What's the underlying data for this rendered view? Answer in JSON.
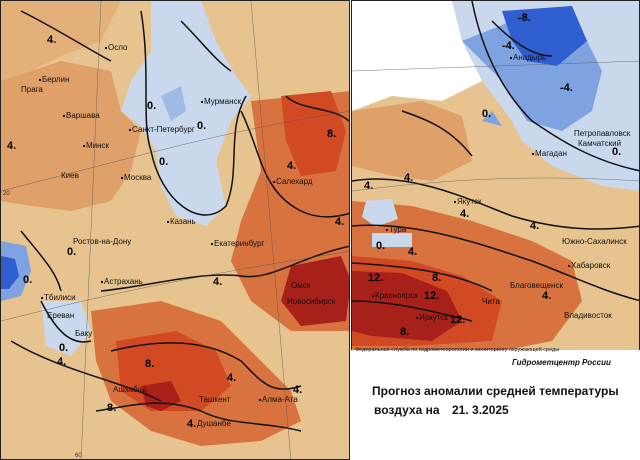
{
  "title": {
    "line1": "Прогноз аномалии средней температуры",
    "line2": "воздуха на",
    "date": "21. 3.2025"
  },
  "agency": "Федеральная служба по гидрометеорологии и мониторингу окружающей среды",
  "brand": "Гидрометцентр России",
  "colors": {
    "cold_strong": "#2e5ecf",
    "cold_mid": "#7fa2e0",
    "cold_light": "#c9d8ec",
    "neutral_warm": "#e7c48f",
    "warm_light": "#dfa06a",
    "warm_mid": "#d8733f",
    "warm_strong": "#d14a23",
    "warm_extreme": "#a8201a"
  },
  "west": {
    "cities": [
      "Осло",
      "Берлин",
      "Прага",
      "Варшава",
      "Мурманск",
      "Санкт-Петербург",
      "Минск",
      "Киев",
      "Москва",
      "Салехард",
      "Казань",
      "Екатеринбург",
      "Ростов-на-Дону",
      "Астрахань",
      "Омск",
      "Новосибирск",
      "Тбилиси",
      "Ереван",
      "Баку",
      "Ашхабад",
      "Ташкент",
      "Алма-Ата",
      "Душанбе"
    ],
    "isolines": [
      "4.",
      "4.",
      "0.",
      "0.",
      "0.",
      "0.",
      "8.",
      "4.",
      "4.",
      "4.",
      "0.",
      "0.",
      "4.",
      "8.",
      "8.",
      "4.",
      "4.",
      "4."
    ],
    "grid_labels": [
      "20",
      "60"
    ]
  },
  "east": {
    "cities": [
      "Анадырь",
      "Петропавловск",
      "Камчатский",
      "Магадан",
      "Якутск",
      "Тура",
      "Южно-Сахалинск",
      "Хабаровск",
      "Благовещенск",
      "Красноярск",
      "Иркутск",
      "Чита",
      "Владивосток"
    ],
    "isolines": [
      "-8.",
      "-4.",
      "-4.",
      "0.",
      "0.",
      "4.",
      "4.",
      "4.",
      "4.",
      "0.",
      "4.",
      "4.",
      "12.",
      "8.",
      "12.",
      "12.",
      "8."
    ]
  }
}
